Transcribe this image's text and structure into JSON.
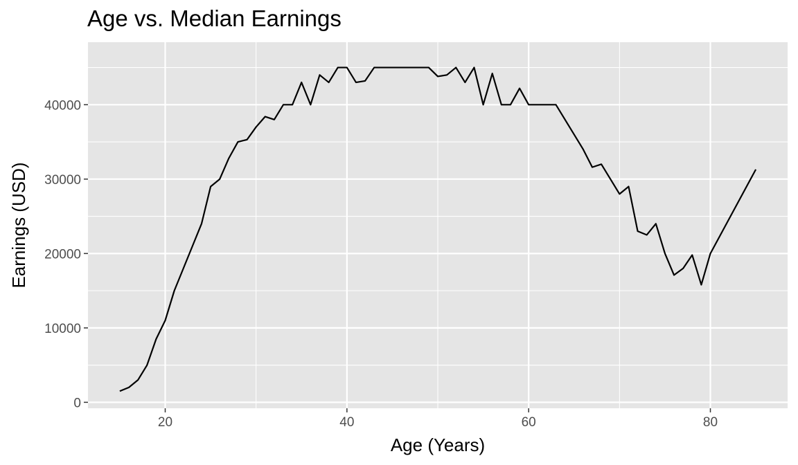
{
  "chart_data": {
    "type": "line",
    "title": "Age vs. Median Earnings",
    "xlabel": "Age (Years)",
    "ylabel": "Earnings (USD)",
    "xlim": [
      11.5,
      88.5
    ],
    "ylim": [
      -800,
      48400
    ],
    "x_ticks": [
      20,
      40,
      60,
      80
    ],
    "y_ticks": [
      0,
      10000,
      20000,
      30000,
      40000
    ],
    "x_tick_labels": [
      "20",
      "40",
      "60",
      "80"
    ],
    "y_tick_labels": [
      "0",
      "10000",
      "20000",
      "30000",
      "40000"
    ],
    "grid": true,
    "legend": false,
    "line_color": "#000000",
    "panel_color": "#e5e5e5",
    "grid_color": "#ffffff",
    "series": [
      {
        "x": [
          15,
          16,
          17,
          18,
          19,
          20,
          21,
          22,
          23,
          24,
          25,
          26,
          27,
          28,
          29,
          30,
          31,
          32,
          33,
          34,
          35,
          36,
          37,
          38,
          39,
          40,
          41,
          42,
          43,
          44,
          45,
          46,
          47,
          48,
          49,
          50,
          51,
          52,
          53,
          54,
          55,
          56,
          57,
          58,
          59,
          60,
          61,
          62,
          63,
          64,
          65,
          66,
          67,
          68,
          69,
          70,
          71,
          72,
          73,
          74,
          75,
          76,
          77,
          78,
          79,
          80,
          85
        ],
        "y": [
          1500,
          2000,
          3000,
          5000,
          8500,
          11000,
          15000,
          18000,
          21000,
          24000,
          29000,
          30000,
          32800,
          35000,
          35300,
          37000,
          38400,
          38000,
          40000,
          40000,
          43000,
          40000,
          44000,
          43000,
          45000,
          45000,
          43000,
          43200,
          45000,
          45000,
          45000,
          45000,
          45000,
          45000,
          45000,
          43800,
          44000,
          45000,
          43000,
          45000,
          40000,
          44200,
          40000,
          40000,
          42200,
          40000,
          40000,
          40000,
          40000,
          38000,
          36000,
          34000,
          31600,
          32000,
          30000,
          28000,
          29000,
          23000,
          22500,
          24000,
          20000,
          17100,
          18000,
          19800,
          15800,
          20000,
          31300
        ]
      }
    ]
  }
}
